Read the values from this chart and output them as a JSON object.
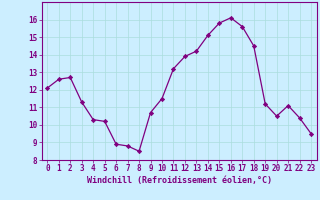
{
  "x": [
    0,
    1,
    2,
    3,
    4,
    5,
    6,
    7,
    8,
    9,
    10,
    11,
    12,
    13,
    14,
    15,
    16,
    17,
    18,
    19,
    20,
    21,
    22,
    23
  ],
  "y": [
    12.1,
    12.6,
    12.7,
    11.3,
    10.3,
    10.2,
    8.9,
    8.8,
    8.5,
    10.7,
    11.5,
    13.2,
    13.9,
    14.2,
    15.1,
    15.8,
    16.1,
    15.6,
    14.5,
    11.2,
    10.5,
    11.1,
    10.4,
    9.5
  ],
  "line_color": "#800080",
  "marker": "D",
  "marker_size": 2.2,
  "bg_color": "#cceeff",
  "grid_color": "#aadddd",
  "xlabel": "Windchill (Refroidissement éolien,°C)",
  "xlabel_color": "#800080",
  "ylim": [
    8,
    17
  ],
  "xlim": [
    -0.5,
    23.5
  ],
  "yticks": [
    8,
    9,
    10,
    11,
    12,
    13,
    14,
    15,
    16
  ],
  "xticks": [
    0,
    1,
    2,
    3,
    4,
    5,
    6,
    7,
    8,
    9,
    10,
    11,
    12,
    13,
    14,
    15,
    16,
    17,
    18,
    19,
    20,
    21,
    22,
    23
  ],
  "tick_color": "#800080",
  "tick_fontsize": 5.5,
  "xlabel_fontsize": 6.0,
  "spine_color": "#800080",
  "linewidth": 0.9
}
